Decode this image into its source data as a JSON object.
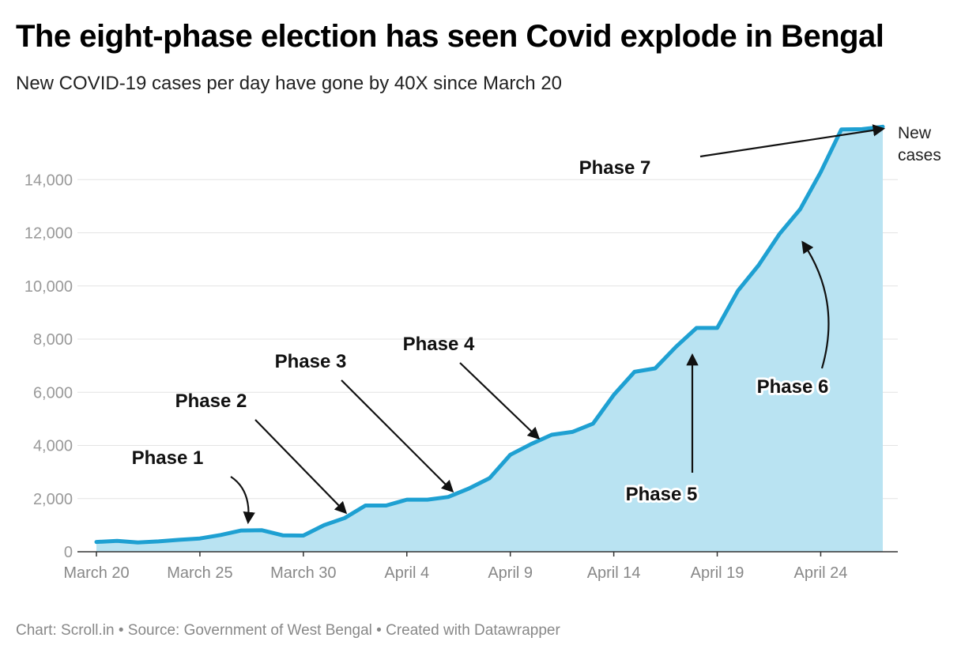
{
  "header": {
    "title": "The eight-phase election has seen Covid explode in Bengal",
    "subtitle": "New COVID-19 cases per day have gone by 40X since March 20"
  },
  "footer": {
    "credit": "Chart: Scroll.in • Source: Government of West Bengal • Created with Datawrapper"
  },
  "chart_data": {
    "type": "area",
    "title": "The eight-phase election has seen Covid explode in Bengal",
    "subtitle": "New COVID-19 cases per day have gone by 40X since March 20",
    "xlabel": "",
    "ylabel": "",
    "ylim": [
      0,
      16000
    ],
    "grid": true,
    "colors": {
      "line": "#1ea0d2",
      "fill": "#b9e3f2"
    },
    "x_ticks": [
      {
        "day": 0,
        "label": "March 20"
      },
      {
        "day": 5,
        "label": "March 25"
      },
      {
        "day": 10,
        "label": "March 30"
      },
      {
        "day": 15,
        "label": "April 4"
      },
      {
        "day": 20,
        "label": "April 9"
      },
      {
        "day": 25,
        "label": "April 14"
      },
      {
        "day": 30,
        "label": "April 19"
      },
      {
        "day": 35,
        "label": "April 24"
      }
    ],
    "y_ticks": [
      {
        "value": 0,
        "label": "0"
      },
      {
        "value": 2000,
        "label": "2,000"
      },
      {
        "value": 4000,
        "label": "4,000"
      },
      {
        "value": 6000,
        "label": "6,000"
      },
      {
        "value": 8000,
        "label": "8,000"
      },
      {
        "value": 10000,
        "label": "10,000"
      },
      {
        "value": 12000,
        "label": "12,000"
      },
      {
        "value": 14000,
        "label": "14,000"
      }
    ],
    "series": [
      {
        "name": "New cases",
        "x": [
          "March 20",
          "March 21",
          "March 22",
          "March 23",
          "March 24",
          "March 25",
          "March 26",
          "March 27",
          "March 28",
          "March 29",
          "March 30",
          "March 31",
          "April 1",
          "April 2",
          "April 3",
          "April 4",
          "April 5",
          "April 6",
          "April 7",
          "April 8",
          "April 9",
          "April 10",
          "April 11",
          "April 12",
          "April 13",
          "April 14",
          "April 15",
          "April 16",
          "April 17",
          "April 18",
          "April 19",
          "April 20",
          "April 21",
          "April 22",
          "April 23",
          "April 24",
          "April 25",
          "April 26",
          "April 27"
        ],
        "values": [
          370,
          410,
          350,
          390,
          450,
          500,
          630,
          800,
          810,
          620,
          610,
          1000,
          1270,
          1740,
          1740,
          1960,
          1960,
          2060,
          2380,
          2770,
          3650,
          4050,
          4400,
          4510,
          4820,
          5900,
          6770,
          6900,
          7710,
          8420,
          8420,
          9820,
          10780,
          11950,
          12880,
          14280,
          15890,
          15900,
          15990
        ]
      }
    ],
    "annotations": [
      {
        "label": "Phase 1",
        "target": "March 27"
      },
      {
        "label": "Phase 2",
        "target": "April 1"
      },
      {
        "label": "Phase 3",
        "target": "April 6"
      },
      {
        "label": "Phase 4",
        "target": "April 10"
      },
      {
        "label": "Phase 5",
        "target": "April 17"
      },
      {
        "label": "Phase 6",
        "target": "April 22"
      },
      {
        "label": "Phase 7",
        "target": "April 26"
      }
    ],
    "series_label": [
      "New",
      "cases"
    ]
  }
}
